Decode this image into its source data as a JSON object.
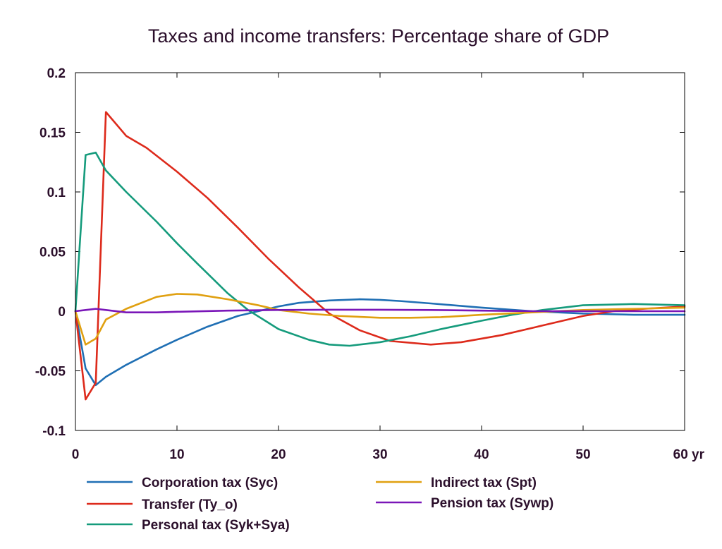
{
  "chart_data": {
    "type": "line",
    "title": "Taxes and income transfers: Percentage share of GDP",
    "xlabel": "",
    "ylabel": "",
    "xlim": [
      0,
      60
    ],
    "ylim": [
      -0.1,
      0.2
    ],
    "x_unit_label": "yr",
    "x_ticks": [
      0,
      10,
      20,
      30,
      40,
      50,
      60
    ],
    "x_tick_labels": [
      "0",
      "10",
      "20",
      "30",
      "40",
      "50",
      "60 yr"
    ],
    "y_ticks": [
      -0.1,
      -0.05,
      0,
      0.05,
      0.1,
      0.15,
      0.2
    ],
    "y_tick_labels": [
      "-0.1",
      "-0.05",
      "0",
      "0.05",
      "0.1",
      "0.15",
      "0.2"
    ],
    "grid": false,
    "legend_position": "bottom",
    "series": [
      {
        "name": "Corporation tax (Syc)",
        "color": "#1f6fb4",
        "x": [
          0,
          1,
          2,
          3,
          5,
          8,
          10,
          13,
          16,
          18,
          20,
          22,
          25,
          28,
          30,
          32,
          35,
          40,
          45,
          50,
          55,
          60
        ],
        "values": [
          0,
          -0.048,
          -0.062,
          -0.055,
          -0.045,
          -0.032,
          -0.024,
          -0.013,
          -0.004,
          0.0,
          0.004,
          0.007,
          0.009,
          0.01,
          0.0095,
          0.0085,
          0.0065,
          0.003,
          0.0,
          -0.002,
          -0.003,
          -0.003
        ]
      },
      {
        "name": "Transfer (Ty_o)",
        "color": "#dd2a1b",
        "x": [
          0,
          1,
          2,
          3,
          5,
          7,
          10,
          13,
          16,
          19,
          22,
          25,
          28,
          31,
          35,
          38,
          42,
          46,
          50,
          53,
          56,
          60
        ],
        "values": [
          0,
          -0.074,
          -0.06,
          0.167,
          0.147,
          0.137,
          0.117,
          0.095,
          0.07,
          0.044,
          0.02,
          -0.002,
          -0.016,
          -0.025,
          -0.028,
          -0.026,
          -0.02,
          -0.012,
          -0.004,
          0.0,
          0.002,
          0.004
        ]
      },
      {
        "name": "Personal tax (Syk+Sya)",
        "color": "#159b7c",
        "x": [
          0,
          1,
          2,
          3,
          5,
          8,
          10,
          12,
          15,
          17,
          20,
          23,
          25,
          27,
          30,
          33,
          36,
          40,
          43,
          46,
          50,
          55,
          60
        ],
        "values": [
          0,
          0.131,
          0.133,
          0.118,
          0.1,
          0.075,
          0.057,
          0.04,
          0.015,
          0.001,
          -0.015,
          -0.024,
          -0.028,
          -0.029,
          -0.026,
          -0.021,
          -0.015,
          -0.008,
          -0.003,
          0.001,
          0.005,
          0.006,
          0.005
        ]
      },
      {
        "name": "Indirect tax (Spt)",
        "color": "#e0a010",
        "x": [
          0,
          1,
          2,
          3,
          5,
          8,
          10,
          12,
          15,
          18,
          20,
          23,
          26,
          30,
          33,
          36,
          40,
          45,
          50,
          55,
          60
        ],
        "values": [
          0,
          -0.028,
          -0.023,
          -0.007,
          0.002,
          0.012,
          0.0145,
          0.014,
          0.01,
          0.005,
          0.001,
          -0.002,
          -0.004,
          -0.0055,
          -0.0055,
          -0.005,
          -0.003,
          -0.001,
          0.001,
          0.002,
          0.003
        ]
      },
      {
        "name": "Pension tax (Sywp)",
        "color": "#7a16b8",
        "x": [
          0,
          1,
          2,
          3,
          5,
          8,
          10,
          15,
          20,
          25,
          30,
          35,
          40,
          45,
          50,
          55,
          60
        ],
        "values": [
          0,
          0.001,
          0.002,
          0.001,
          -0.001,
          -0.001,
          -0.0005,
          0.0005,
          0.001,
          0.0012,
          0.0012,
          0.001,
          0.0005,
          0.0,
          0.0,
          0.0,
          0.0
        ]
      }
    ]
  }
}
